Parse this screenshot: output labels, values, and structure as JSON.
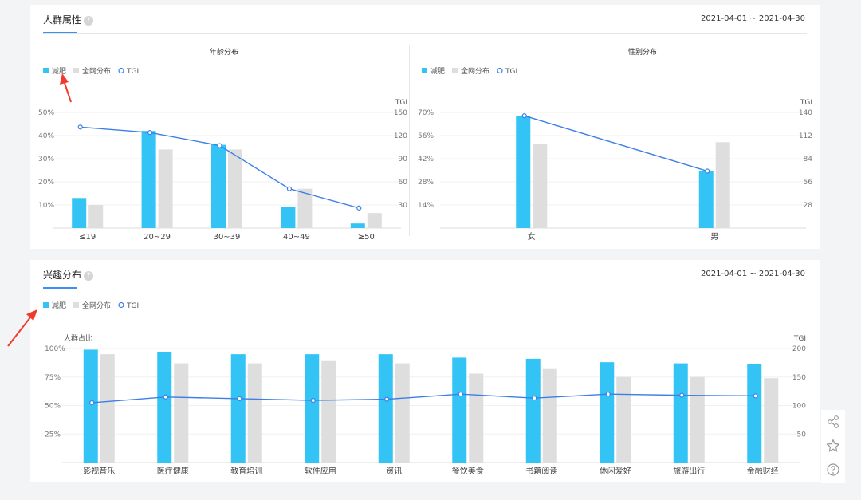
{
  "colors": {
    "primary": "#33c3f5",
    "secondary": "#dedede",
    "tgi": "#3d7fe6",
    "accent": "#3d8ff5",
    "arrow": "#f23a2c"
  },
  "legend": {
    "series_a": "减肥",
    "series_b": "全网分布",
    "series_c": "TGI"
  },
  "crowd": {
    "title": "人群属性",
    "date_range": "2021-04-01 ~ 2021-04-30",
    "help_icon": "question-circle-icon"
  },
  "interest": {
    "title": "兴趣分布",
    "date_range": "2021-04-01 ~ 2021-04-30",
    "help_icon": "question-circle-icon"
  },
  "toolbar": {
    "icons": [
      "share-icon",
      "star-icon",
      "help-icon"
    ]
  },
  "chart_data": [
    {
      "type": "bar",
      "title": "年龄分布",
      "categories": [
        "≤19",
        "20~29",
        "30~39",
        "40~49",
        "≥50"
      ],
      "ylim": [
        0,
        50
      ],
      "y_ticks": [
        "10%",
        "20%",
        "30%",
        "40%",
        "50%"
      ],
      "y2label": "TGI",
      "y2lim": [
        0,
        150
      ],
      "y2_ticks": [
        "30",
        "60",
        "90",
        "120",
        "150"
      ],
      "series": [
        {
          "name": "减肥",
          "values": [
            13,
            42,
            36,
            9,
            2
          ]
        },
        {
          "name": "全网分布",
          "values": [
            10,
            34,
            34,
            17,
            6.5
          ]
        },
        {
          "name": "TGI",
          "axis": "right",
          "values": [
            131,
            124,
            107,
            51,
            26
          ]
        }
      ],
      "legend_position": "top-left",
      "grid": true
    },
    {
      "type": "bar",
      "title": "性别分布",
      "categories": [
        "女",
        "男"
      ],
      "ylim": [
        0,
        70
      ],
      "y_ticks": [
        "14%",
        "28%",
        "42%",
        "56%",
        "70%"
      ],
      "y2label": "TGI",
      "y2lim": [
        0,
        140
      ],
      "y2_ticks": [
        "28",
        "56",
        "84",
        "112",
        "140"
      ],
      "series": [
        {
          "name": "减肥",
          "values": [
            68,
            34.5
          ]
        },
        {
          "name": "全网分布",
          "values": [
            51,
            52
          ]
        },
        {
          "name": "TGI",
          "axis": "right",
          "values": [
            136,
            69
          ]
        }
      ],
      "legend_position": "top-left",
      "grid": true
    },
    {
      "type": "bar",
      "categories": [
        "影视音乐",
        "医疗健康",
        "教育培训",
        "软件应用",
        "资讯",
        "餐饮美食",
        "书籍阅读",
        "休闲爱好",
        "旅游出行",
        "金融财经"
      ],
      "ylabel": "人群占比",
      "ylim": [
        0,
        100
      ],
      "y_ticks": [
        "25%",
        "50%",
        "75%",
        "100%"
      ],
      "y2label": "TGI",
      "y2lim": [
        0,
        200
      ],
      "y2_ticks": [
        "50",
        "100",
        "150",
        "200"
      ],
      "series": [
        {
          "name": "减肥",
          "values": [
            99,
            97,
            95,
            95,
            95,
            92,
            91,
            88,
            87,
            86
          ]
        },
        {
          "name": "全网分布",
          "values": [
            95,
            87,
            87,
            89,
            87,
            78,
            82,
            75,
            75,
            74
          ]
        },
        {
          "name": "TGI",
          "axis": "right",
          "values": [
            105,
            115,
            112,
            109,
            111,
            120,
            113,
            120,
            118,
            117
          ]
        }
      ],
      "legend_position": "top-left",
      "grid": true
    }
  ]
}
